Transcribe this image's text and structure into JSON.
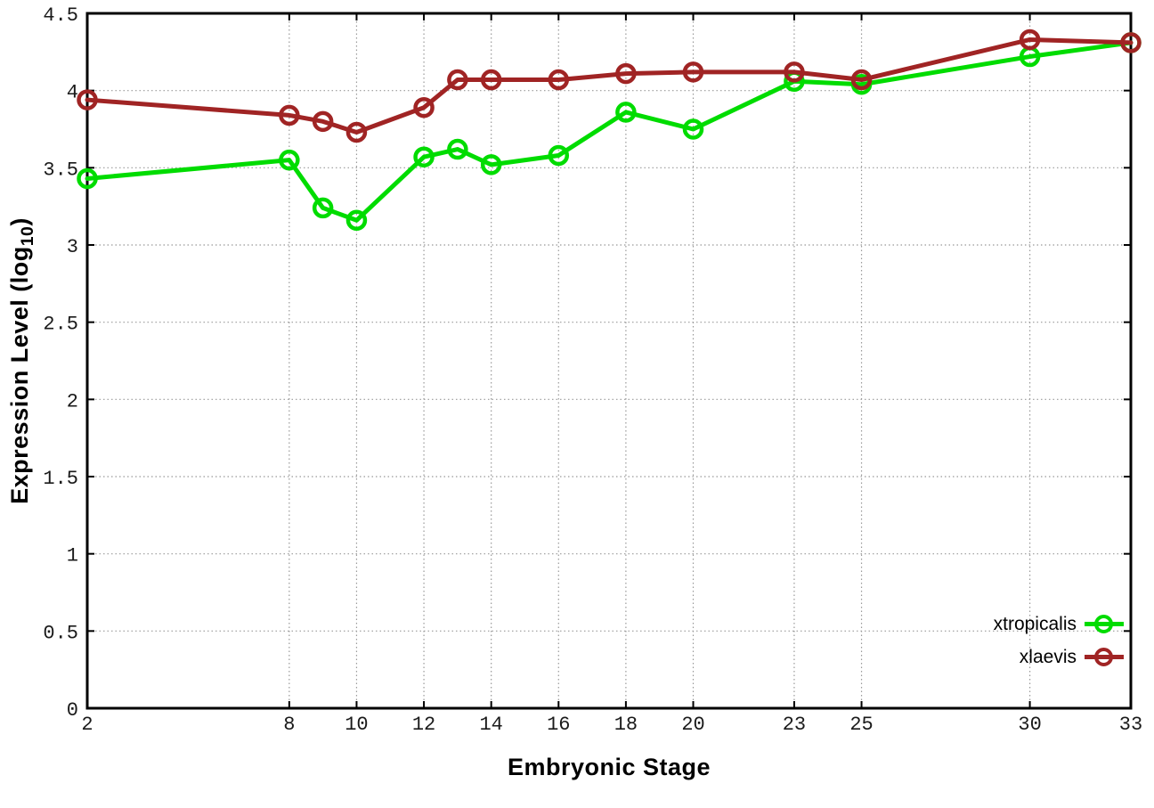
{
  "figure": {
    "background": "#ffffff",
    "xlabel": "Embryonic Stage",
    "ylabel_prefix": "Expression Level (log",
    "ylabel_sub": "10",
    "ylabel_suffix": ")"
  },
  "chart_data": {
    "type": "line",
    "title": "",
    "xlabel": "Embryonic Stage",
    "ylabel": "Expression Level (log10)",
    "xlim": [
      2,
      33
    ],
    "ylim": [
      0,
      4.5
    ],
    "x_ticks": [
      2,
      8,
      10,
      12,
      14,
      16,
      18,
      20,
      23,
      25,
      30,
      33
    ],
    "y_tick_labels": [
      "0",
      "0.5",
      "1",
      "1.5",
      "2",
      "2.5",
      "3",
      "3.5",
      "4",
      "4.5"
    ],
    "grid": true,
    "legend_position": "bottom-right",
    "x": [
      2,
      8,
      9,
      10,
      12,
      13,
      14,
      16,
      18,
      20,
      23,
      25,
      30,
      33
    ],
    "series": [
      {
        "name": "xtropicalis",
        "color": "#00dc00",
        "marker": "open-circle",
        "values": [
          3.43,
          3.55,
          3.24,
          3.16,
          3.57,
          3.62,
          3.52,
          3.58,
          3.86,
          3.75,
          4.06,
          4.04,
          4.22,
          4.31
        ]
      },
      {
        "name": "xlaevis",
        "color": "#a02424",
        "marker": "open-circle",
        "values": [
          3.94,
          3.84,
          3.8,
          3.73,
          3.89,
          4.07,
          4.07,
          4.07,
          4.11,
          4.12,
          4.12,
          4.07,
          4.33,
          4.31
        ]
      }
    ],
    "colors": {
      "grid": "#999999",
      "axis": "#000000",
      "tick_label": "#1a1a1a"
    }
  }
}
